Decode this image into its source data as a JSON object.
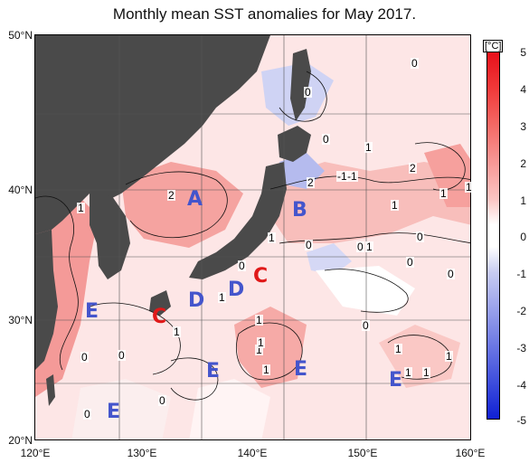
{
  "title": "Monthly mean SST anomalies for May 2017.",
  "lat_labels": [
    "50°N",
    "40°N",
    "30°N",
    "20°N"
  ],
  "lon_labels": [
    "120°E",
    "130°E",
    "140°E",
    "150°E",
    "160°E"
  ],
  "colorbar": {
    "unit": "[°C]",
    "ticks": [
      "5",
      "4",
      "3",
      "2",
      "1",
      "0",
      "-1",
      "-2",
      "-3",
      "-4",
      "-5"
    ],
    "colors": [
      "#e8101a",
      "#f03a3a",
      "#f46a66",
      "#f79896",
      "#fbc4c2",
      "#ffffff",
      "#c8ccf2",
      "#9aa2ec",
      "#6c78e4",
      "#3e4edc",
      "#1020d4"
    ]
  },
  "region_labels": [
    {
      "label": "A",
      "color": "#4455cc"
    },
    {
      "label": "B",
      "color": "#4455cc"
    },
    {
      "label": "C",
      "color": "#e01818"
    },
    {
      "label": "C",
      "color": "#e01818"
    },
    {
      "label": "D",
      "color": "#4455cc"
    },
    {
      "label": "D",
      "color": "#4455cc"
    },
    {
      "label": "E",
      "color": "#4455cc"
    },
    {
      "label": "E",
      "color": "#4455cc"
    },
    {
      "label": "E",
      "color": "#4455cc"
    },
    {
      "label": "E",
      "color": "#4455cc"
    },
    {
      "label": "E",
      "color": "#4455cc"
    }
  ],
  "contour_labels": [
    "1",
    "2",
    "2",
    "1",
    "0",
    "0",
    "0",
    "1",
    "2",
    "-1",
    "-1",
    "0",
    "1",
    "1",
    "1",
    "1",
    "0",
    "0",
    "1",
    "0",
    "0",
    "0",
    "1",
    "1",
    "1",
    "0",
    "1",
    "1",
    "1",
    "1",
    "1",
    "1",
    "0",
    "0",
    "0",
    "0"
  ],
  "land_color": "#4a4a4a"
}
